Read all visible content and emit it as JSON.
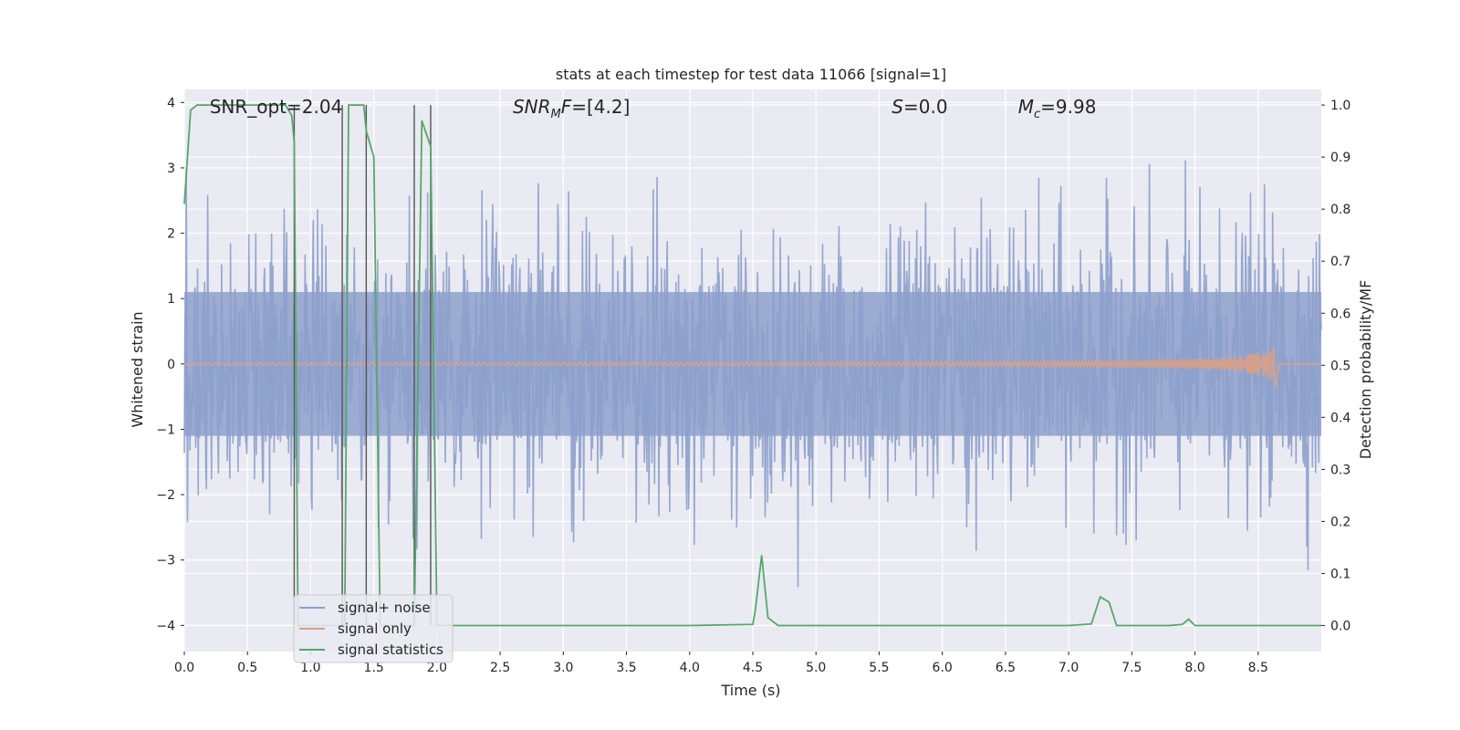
{
  "chart_data": {
    "type": "line",
    "title": "stats at each timestep for test data 11066 [signal=1]",
    "xlabel": "Time (s)",
    "ylabel_left": "Whitened strain",
    "ylabel_right": "Detection probability/MF",
    "xlim": [
      0.0,
      9.0
    ],
    "ylim_left": [
      -4.4,
      4.2
    ],
    "ylim_right": [
      -0.05,
      1.03
    ],
    "x_ticks": [
      "0.0",
      "0.5",
      "1.0",
      "1.5",
      "2.0",
      "2.5",
      "3.0",
      "3.5",
      "4.0",
      "4.5",
      "5.0",
      "5.5",
      "6.0",
      "6.5",
      "7.0",
      "7.5",
      "8.0",
      "8.5"
    ],
    "y_ticks_left": [
      "4",
      "3",
      "2",
      "1",
      "0",
      "−1",
      "−2",
      "−3",
      "−4"
    ],
    "y_ticks_right": [
      "1.0",
      "0.9",
      "0.8",
      "0.7",
      "0.6",
      "0.5",
      "0.4",
      "0.3",
      "0.2",
      "0.1",
      "0.0"
    ],
    "grid": true,
    "legend_position": "lower-left",
    "annotations": [
      {
        "label": "SNR_opt=2.04",
        "x": 0.2
      },
      {
        "label": "SNRMF=[4.2]",
        "x": 2.6
      },
      {
        "label": "S=0.0",
        "x": 5.6
      },
      {
        "label": "Mc=9.98",
        "x": 6.6
      }
    ],
    "vertical_markers_x": [
      0.87,
      1.25,
      1.44,
      1.82,
      1.95
    ],
    "series": [
      {
        "name": "signal+ noise",
        "color": "#8da0cb",
        "axis": "left",
        "kind": "noise",
        "amplitude_range": [
          -4.0,
          3.9
        ]
      },
      {
        "name": "signal only",
        "color": "#d4a08c",
        "axis": "left",
        "kind": "chirp",
        "peak_time": 8.65,
        "peak_amplitude": 0.4
      },
      {
        "name": "signal statistics",
        "color": "#55a868",
        "axis": "right",
        "x": [
          0.0,
          0.05,
          0.1,
          0.2,
          0.5,
          0.8,
          0.85,
          0.87,
          0.9,
          0.95,
          1.0,
          1.2,
          1.25,
          1.27,
          1.3,
          1.42,
          1.44,
          1.5,
          1.55,
          1.6,
          1.8,
          1.82,
          1.88,
          1.95,
          2.0,
          2.05,
          2.5,
          3.0,
          3.5,
          4.0,
          4.5,
          4.52,
          4.57,
          4.62,
          4.7,
          5.0,
          5.5,
          6.0,
          6.5,
          7.0,
          7.18,
          7.25,
          7.32,
          7.38,
          7.5,
          7.8,
          7.9,
          7.95,
          8.0,
          8.5,
          9.0
        ],
        "y": [
          0.81,
          0.99,
          1.0,
          1.0,
          1.0,
          1.0,
          0.98,
          0.93,
          0.0,
          0.0,
          0.0,
          0.0,
          0.0,
          0.0,
          1.0,
          1.0,
          0.95,
          0.9,
          0.0,
          0.0,
          0.0,
          0.0,
          0.97,
          0.92,
          0.0,
          0.0,
          0.0,
          0.0,
          0.0,
          0.0,
          0.002,
          0.03,
          0.135,
          0.015,
          0.0,
          0.0,
          0.0,
          0.0,
          0.0,
          0.0,
          0.003,
          0.055,
          0.045,
          0.0,
          0.0,
          0.0,
          0.002,
          0.012,
          0.0,
          0.0,
          0.0
        ]
      }
    ]
  }
}
